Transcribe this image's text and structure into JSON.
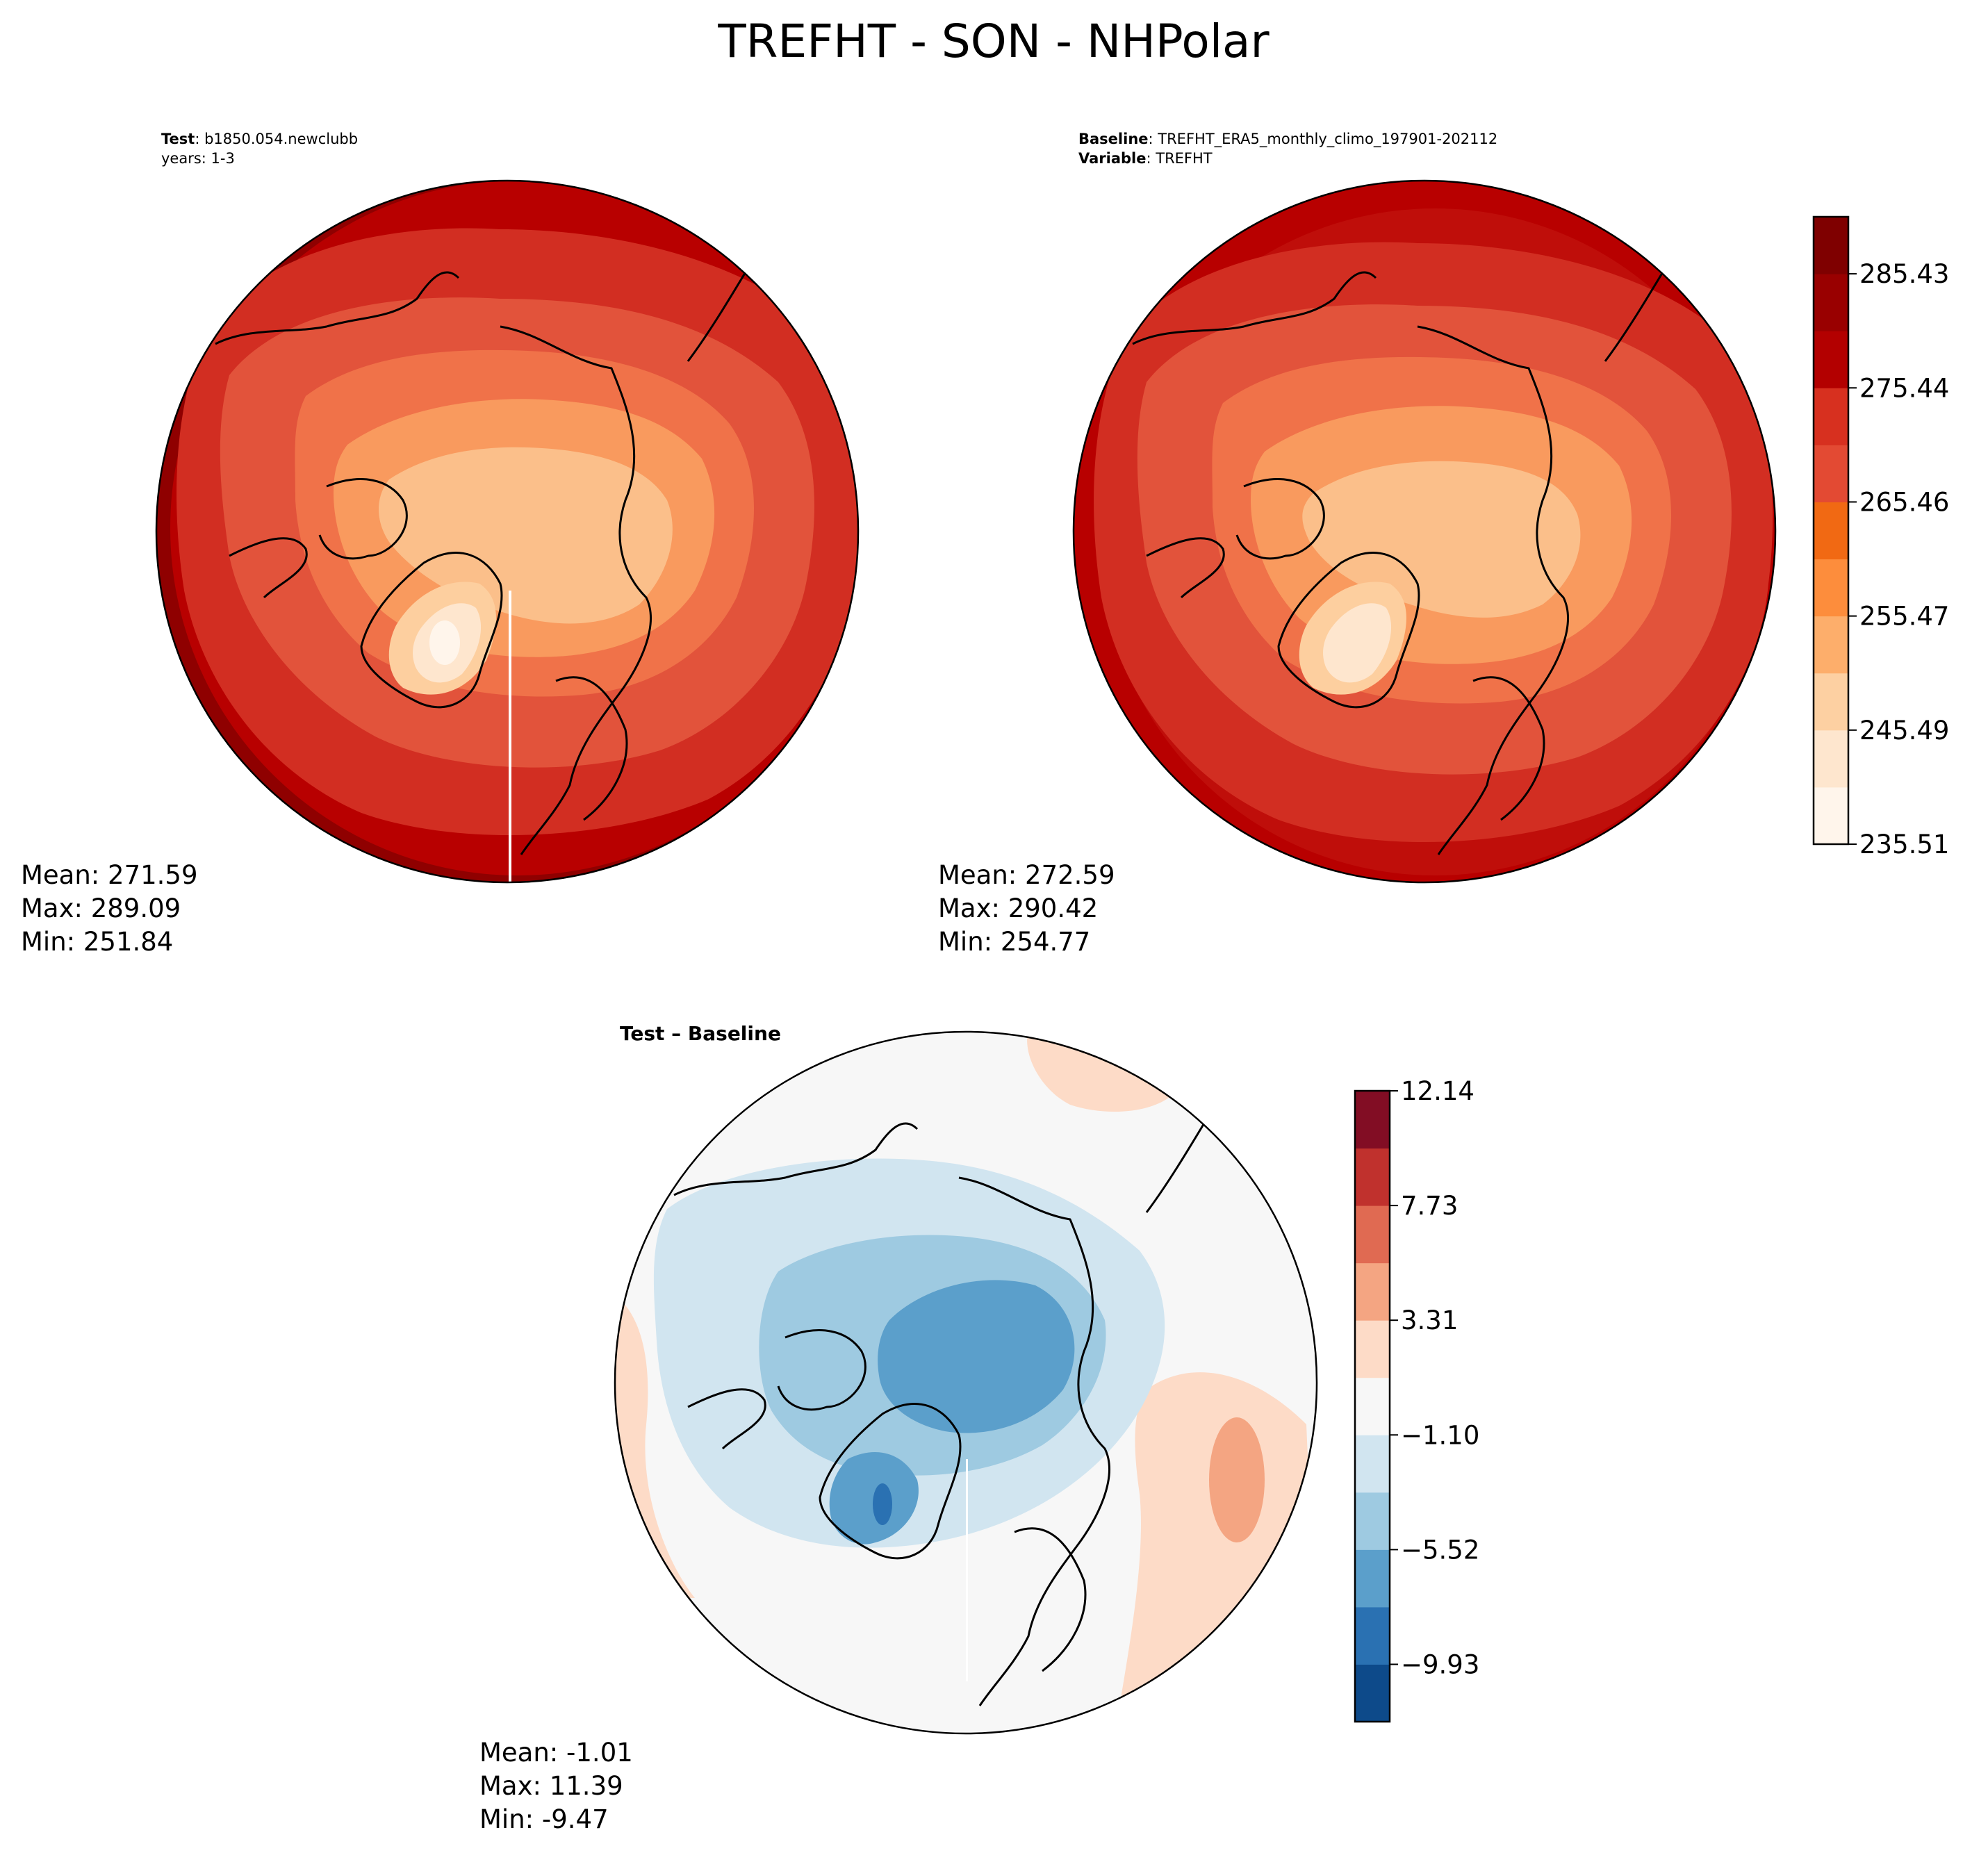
{
  "title": "TREFHT - SON - NHPolar",
  "panels": {
    "test": {
      "header_bold_1": "Test",
      "header_text_1": ": b1850.054.newclubb",
      "header_text_2": "years: 1-3",
      "stats": {
        "mean": "Mean: 271.59",
        "max": "Max: 289.09",
        "min": "Min: 251.84"
      }
    },
    "baseline": {
      "header_bold_1": "Baseline",
      "header_text_1": ": TREFHT_ERA5_monthly_climo_197901-202112",
      "header_bold_2": "Variable",
      "header_text_2": ": TREFHT",
      "stats": {
        "mean": "Mean: 272.59",
        "max": "Max: 290.42",
        "min": "Min: 254.77"
      }
    },
    "diff": {
      "header_bold_1": "Test – Baseline",
      "stats": {
        "mean": "Mean: -1.01",
        "max": "Max: 11.39",
        "min": "Min: -9.47"
      }
    }
  },
  "colorbars": {
    "absolute": {
      "ticks": [
        "285.43",
        "275.44",
        "265.46",
        "255.47",
        "245.49",
        "235.51"
      ],
      "levels": [
        235.51,
        240.5,
        245.49,
        250.48,
        255.47,
        260.46,
        265.46,
        270.45,
        275.44,
        280.43,
        285.43,
        290.42
      ],
      "colors": [
        "#fff5eb",
        "#fee6ce",
        "#fdd0a2",
        "#fdae6b",
        "#fd8d3c",
        "#f16913",
        "#e34a33",
        "#d7301f",
        "#b30000",
        "#990000",
        "#7f0000"
      ],
      "map_colors": [
        "#fff5eb",
        "#fee6ce",
        "#fdcf9f",
        "#fbbf8a",
        "#f99a5e",
        "#f07249",
        "#e2533b",
        "#d22e22",
        "#bf0e0a",
        "#b80000",
        "#8f0000"
      ]
    },
    "difference": {
      "ticks": [
        "12.14",
        "7.73",
        "3.31",
        "−1.10",
        "−5.52",
        "−9.93"
      ],
      "colors": [
        "#0d4a8a",
        "#2a71b2",
        "#5b9fcb",
        "#9ecae1",
        "#d1e5f0",
        "#f7f7f7",
        "#fddbc7",
        "#f4a582",
        "#e06a52",
        "#c0312d",
        "#820d24"
      ]
    }
  }
}
